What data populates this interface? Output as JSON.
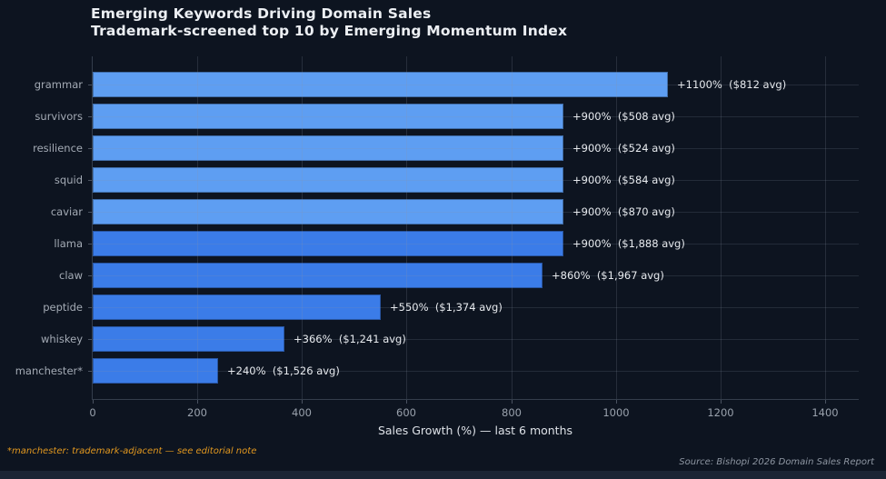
{
  "title": {
    "line1": "Emerging Keywords Driving Domain Sales",
    "line2": "Trademark-screened top 10 by Emerging Momentum Index"
  },
  "chart_data": {
    "type": "bar",
    "orientation": "horizontal",
    "categories": [
      "grammar",
      "survivors",
      "resilience",
      "squid",
      "caviar",
      "llama",
      "claw",
      "peptide",
      "whiskey",
      "manchester*"
    ],
    "values": [
      1100,
      900,
      900,
      900,
      900,
      900,
      860,
      550,
      366,
      240
    ],
    "bar_labels": [
      "+1100%  ($812 avg)",
      "+900%  ($508 avg)",
      "+900%  ($524 avg)",
      "+900%  ($584 avg)",
      "+900%  ($870 avg)",
      "+900%  ($1,888 avg)",
      "+860%  ($1,967 avg)",
      "+550%  ($1,374 avg)",
      "+366%  ($1,241 avg)",
      "+240%  ($1,526 avg)"
    ],
    "avg_sale_prices_usd": [
      812,
      508,
      524,
      584,
      870,
      1888,
      1967,
      1374,
      1241,
      1526
    ],
    "bar_colors": [
      "#5e9ef2",
      "#5e9ef2",
      "#5e9ef2",
      "#5e9ef2",
      "#5e9ef2",
      "#3b7ce8",
      "#3b7ce8",
      "#3b7ce8",
      "#3b7ce8",
      "#3b7ce8"
    ],
    "xlabel": "Sales Growth (%) — last 6 months",
    "ylabel": "",
    "xticks": [
      0,
      200,
      400,
      600,
      800,
      1000,
      1200,
      1400
    ],
    "xlim": [
      0,
      1465
    ],
    "grid": true,
    "legend": null
  },
  "footnote": "*manchester: trademark-adjacent — see editorial note",
  "source": "Source: Bishopi 2026 Domain Sales Report",
  "colors": {
    "background": "#0d1420",
    "light_bar": "#5e9ef2",
    "dark_bar": "#3b7ce8",
    "footnote_orange": "#e2981f",
    "title_text": "#eceff3",
    "axis_text": "#99a1ac"
  }
}
